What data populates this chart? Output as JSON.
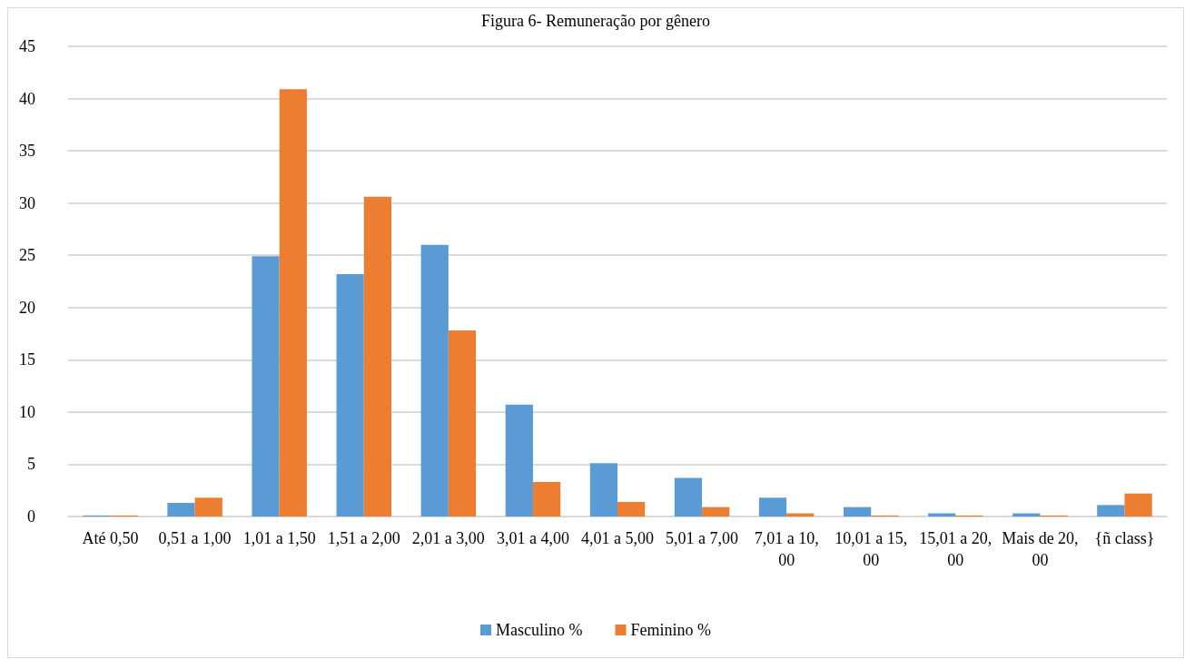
{
  "chart_data": {
    "type": "bar",
    "title": "Figura 6- Remuneração por gênero",
    "categories": [
      "Até 0,50",
      "0,51 a 1,00",
      "1,01 a 1,50",
      "1,51 a 2,00",
      "2,01 a 3,00",
      "3,01 a 4,00",
      "4,01 a 5,00",
      "5,01 a 7,00",
      "7,01 a 10,00",
      "10,01 a 15,00",
      "15,01 a 20,00",
      "Mais de 20,00",
      "{ñ class}"
    ],
    "series": [
      {
        "name": "Masculino %",
        "color": "#5b9bd5",
        "values": [
          0.1,
          1.3,
          24.9,
          23.2,
          26,
          10.7,
          5.1,
          3.7,
          1.8,
          0.9,
          0.3,
          0.3,
          1.1
        ]
      },
      {
        "name": "Feminino %",
        "color": "#ed7d31",
        "values": [
          0.1,
          1.8,
          40.9,
          30.6,
          17.8,
          3.3,
          1.4,
          0.9,
          0.3,
          0.1,
          0.1,
          0.1,
          2.2
        ]
      }
    ],
    "ylim": [
      0,
      45
    ],
    "yticks": [
      0,
      5,
      10,
      15,
      20,
      25,
      30,
      35,
      40,
      45
    ],
    "grid": "y",
    "legend": "bottom"
  }
}
